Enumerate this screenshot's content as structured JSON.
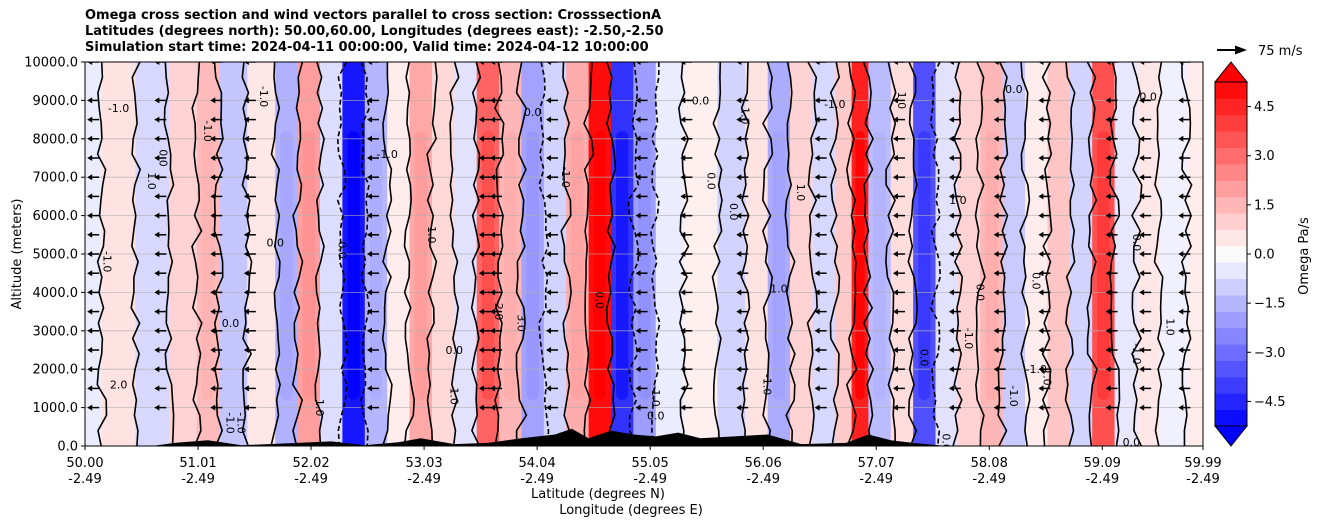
{
  "chart_data": {
    "type": "heatmap",
    "title_lines": [
      "Omega cross section and wind vectors parallel to cross section: CrosssectionA",
      "Latitudes (degrees north): 50.00,60.00, Longitudes (degrees east): -2.50,-2.50",
      "Simulation start time: 2024-04-11 00:00:00, Valid time: 2024-04-12 10:00:00"
    ],
    "ylabel": "Altitude (meters)",
    "xlabel_lines": [
      "Latitude (degrees N)",
      "Longitude (degrees E)"
    ],
    "ylim": [
      0,
      10000
    ],
    "y_ticks": [
      "0.0",
      "1000.0",
      "2000.0",
      "3000.0",
      "4000.0",
      "5000.0",
      "6000.0",
      "7000.0",
      "8000.0",
      "9000.0",
      "10000.0"
    ],
    "xlim": [
      50.0,
      59.99
    ],
    "x_tick_values": [
      50.0,
      51.01,
      52.02,
      53.03,
      54.04,
      55.05,
      56.06,
      57.07,
      58.08,
      59.09,
      59.99
    ],
    "x_ticks_lat": [
      "50.00",
      "51.01",
      "52.02",
      "53.03",
      "54.04",
      "55.05",
      "56.06",
      "57.07",
      "58.08",
      "59.09",
      "59.99"
    ],
    "x_ticks_lon": [
      "-2.49",
      "-2.49",
      "-2.49",
      "-2.49",
      "-2.49",
      "-2.49",
      "-2.49",
      "-2.49",
      "-2.49",
      "-2.49",
      "-2.49"
    ],
    "grid": true,
    "colorbar": {
      "label": "Omega Pa/s",
      "range": [
        -5.25,
        5.25
      ],
      "ticks": [
        "4.5",
        "3.0",
        "1.5",
        "0.0",
        "−1.5",
        "−3.0",
        "−4.5"
      ],
      "tick_values": [
        4.5,
        3.0,
        1.5,
        0.0,
        -1.5,
        -3.0,
        -4.5
      ],
      "extend": "both"
    },
    "vector_key": {
      "label": "75 m/s"
    },
    "omega_columns": [
      {
        "lat": 50.0,
        "v": -0.4
      },
      {
        "lat": 50.3,
        "v": 0.6
      },
      {
        "lat": 50.6,
        "v": -0.8
      },
      {
        "lat": 50.9,
        "v": 0.9
      },
      {
        "lat": 51.1,
        "v": 1.4
      },
      {
        "lat": 51.3,
        "v": -1.2
      },
      {
        "lat": 51.6,
        "v": 0.5
      },
      {
        "lat": 51.8,
        "v": -1.6
      },
      {
        "lat": 52.0,
        "v": 2.0
      },
      {
        "lat": 52.2,
        "v": -0.7
      },
      {
        "lat": 52.4,
        "v": -4.8
      },
      {
        "lat": 52.6,
        "v": -1.5
      },
      {
        "lat": 52.8,
        "v": 0.4
      },
      {
        "lat": 53.0,
        "v": 1.8
      },
      {
        "lat": 53.2,
        "v": 0.8
      },
      {
        "lat": 53.4,
        "v": -0.6
      },
      {
        "lat": 53.6,
        "v": 3.2
      },
      {
        "lat": 53.8,
        "v": 1.5
      },
      {
        "lat": 54.0,
        "v": -1.9
      },
      {
        "lat": 54.2,
        "v": -0.9
      },
      {
        "lat": 54.4,
        "v": 1.7
      },
      {
        "lat": 54.6,
        "v": 5.0
      },
      {
        "lat": 54.8,
        "v": -4.2
      },
      {
        "lat": 55.0,
        "v": -2.0
      },
      {
        "lat": 55.2,
        "v": -0.4
      },
      {
        "lat": 55.5,
        "v": 0.3
      },
      {
        "lat": 55.8,
        "v": -0.9
      },
      {
        "lat": 56.0,
        "v": 0.6
      },
      {
        "lat": 56.2,
        "v": -1.7
      },
      {
        "lat": 56.4,
        "v": 0.9
      },
      {
        "lat": 56.6,
        "v": -0.8
      },
      {
        "lat": 56.8,
        "v": 1.1
      },
      {
        "lat": 56.9,
        "v": 4.6
      },
      {
        "lat": 57.1,
        "v": -1.4
      },
      {
        "lat": 57.3,
        "v": 0.7
      },
      {
        "lat": 57.5,
        "v": -3.6
      },
      {
        "lat": 57.7,
        "v": -0.6
      },
      {
        "lat": 57.9,
        "v": 0.9
      },
      {
        "lat": 58.1,
        "v": 1.5
      },
      {
        "lat": 58.3,
        "v": -1.1
      },
      {
        "lat": 58.5,
        "v": 0.4
      },
      {
        "lat": 58.7,
        "v": 1.2
      },
      {
        "lat": 58.9,
        "v": -0.9
      },
      {
        "lat": 59.1,
        "v": 3.6
      },
      {
        "lat": 59.3,
        "v": -0.5
      },
      {
        "lat": 59.5,
        "v": 0.5
      },
      {
        "lat": 59.7,
        "v": -0.3
      },
      {
        "lat": 59.99,
        "v": 0.4
      }
    ],
    "contour_labels": [
      {
        "text": "-1.0",
        "lat": 50.3,
        "alt": 8800
      },
      {
        "text": "1.0",
        "lat": 50.6,
        "alt": 6900
      },
      {
        "text": "-1.0",
        "lat": 50.2,
        "alt": 4800
      },
      {
        "text": "2.0",
        "lat": 50.3,
        "alt": 1600
      },
      {
        "text": "0.0",
        "lat": 50.7,
        "alt": 7500
      },
      {
        "text": "-1.0",
        "lat": 51.1,
        "alt": 8200
      },
      {
        "text": "0.0",
        "lat": 51.3,
        "alt": 3200
      },
      {
        "text": "-1.0",
        "lat": 51.3,
        "alt": 600
      },
      {
        "text": "-1.0",
        "lat": 51.6,
        "alt": 9100
      },
      {
        "text": "0.0",
        "lat": 51.7,
        "alt": 5300
      },
      {
        "text": "1.0",
        "lat": 52.1,
        "alt": 1000
      },
      {
        "text": "0.0",
        "lat": 52.3,
        "alt": 5100
      },
      {
        "text": "-1.0",
        "lat": 52.7,
        "alt": 7600
      },
      {
        "text": "1.0",
        "lat": 53.1,
        "alt": 5500
      },
      {
        "text": "1.0",
        "lat": 53.3,
        "alt": 1300
      },
      {
        "text": "0.0",
        "lat": 53.3,
        "alt": 2500
      },
      {
        "text": "2.0",
        "lat": 53.7,
        "alt": 3500
      },
      {
        "text": "3.0",
        "lat": 53.9,
        "alt": 3200
      },
      {
        "text": "0.0",
        "lat": 54.0,
        "alt": 8700
      },
      {
        "text": "-1.0",
        "lat": 54.3,
        "alt": 7000
      },
      {
        "text": "0.0",
        "lat": 54.6,
        "alt": 3800
      },
      {
        "text": "0.0",
        "lat": 55.1,
        "alt": 800
      },
      {
        "text": "-1.0",
        "lat": 55.1,
        "alt": 1300
      },
      {
        "text": "0.0",
        "lat": 55.6,
        "alt": 6900
      },
      {
        "text": "0.0",
        "lat": 55.5,
        "alt": 9000
      },
      {
        "text": "1.0",
        "lat": 55.9,
        "alt": 8600
      },
      {
        "text": "0.0",
        "lat": 55.8,
        "alt": 6100
      },
      {
        "text": "1.0",
        "lat": 56.2,
        "alt": 4100
      },
      {
        "text": "1.0",
        "lat": 56.4,
        "alt": 6600
      },
      {
        "text": "-1.0",
        "lat": 56.1,
        "alt": 1600
      },
      {
        "text": "-1.0",
        "lat": 56.7,
        "alt": 8900
      },
      {
        "text": "1.0",
        "lat": 57.3,
        "alt": 9000
      },
      {
        "text": "0.0",
        "lat": 57.5,
        "alt": 2300
      },
      {
        "text": "1.0",
        "lat": 57.8,
        "alt": 6400
      },
      {
        "text": "-1.0",
        "lat": 57.9,
        "alt": 2800
      },
      {
        "text": "0.0",
        "lat": 58.0,
        "alt": 4000
      },
      {
        "text": "0.0",
        "lat": 58.3,
        "alt": 9300
      },
      {
        "text": "-1.0",
        "lat": 58.3,
        "alt": 1300
      },
      {
        "text": "0.0",
        "lat": 58.5,
        "alt": 4300
      },
      {
        "text": "-1.0",
        "lat": 58.5,
        "alt": 2000
      },
      {
        "text": "1.0",
        "lat": 58.6,
        "alt": 1800
      },
      {
        "text": "0.0",
        "lat": 59.4,
        "alt": 5300
      },
      {
        "text": "0.0",
        "lat": 59.5,
        "alt": 9100
      },
      {
        "text": "-1.0",
        "lat": 59.4,
        "alt": 2400
      },
      {
        "text": "1.0",
        "lat": 59.7,
        "alt": 3100
      },
      {
        "text": "0.0",
        "lat": 59.35,
        "alt": 100
      },
      {
        "text": "0.0",
        "lat": 57.7,
        "alt": 100
      },
      {
        "text": "-1.0",
        "lat": 51.4,
        "alt": 600
      }
    ],
    "wind_vectors": {
      "direction": "left",
      "columns": [
        50.1,
        50.7,
        51.2,
        51.5,
        52.6,
        53.6,
        53.7,
        54.2,
        55.0,
        55.4,
        55.9,
        56.6,
        57.3,
        57.8,
        58.2,
        58.6,
        59.2,
        59.5,
        59.85
      ],
      "levels": [
        10000,
        9000,
        8500,
        8000,
        7500,
        7000,
        6500,
        6000,
        5500,
        5000,
        4500,
        4000,
        3500,
        3000,
        2500,
        2000,
        1500,
        1000
      ]
    },
    "terrain": [
      {
        "lat": 50.0,
        "alt": 0
      },
      {
        "lat": 50.6,
        "alt": 0
      },
      {
        "lat": 50.8,
        "alt": 80
      },
      {
        "lat": 51.1,
        "alt": 150
      },
      {
        "lat": 51.4,
        "alt": 20
      },
      {
        "lat": 51.9,
        "alt": 80
      },
      {
        "lat": 52.2,
        "alt": 120
      },
      {
        "lat": 52.5,
        "alt": 20
      },
      {
        "lat": 52.8,
        "alt": 100
      },
      {
        "lat": 53.0,
        "alt": 200
      },
      {
        "lat": 53.3,
        "alt": 50
      },
      {
        "lat": 53.6,
        "alt": 80
      },
      {
        "lat": 53.9,
        "alt": 200
      },
      {
        "lat": 54.2,
        "alt": 300
      },
      {
        "lat": 54.35,
        "alt": 450
      },
      {
        "lat": 54.5,
        "alt": 200
      },
      {
        "lat": 54.7,
        "alt": 400
      },
      {
        "lat": 54.9,
        "alt": 300
      },
      {
        "lat": 55.1,
        "alt": 250
      },
      {
        "lat": 55.3,
        "alt": 350
      },
      {
        "lat": 55.5,
        "alt": 200
      },
      {
        "lat": 55.8,
        "alt": 250
      },
      {
        "lat": 56.1,
        "alt": 300
      },
      {
        "lat": 56.4,
        "alt": 50
      },
      {
        "lat": 56.8,
        "alt": 80
      },
      {
        "lat": 57.0,
        "alt": 300
      },
      {
        "lat": 57.2,
        "alt": 150
      },
      {
        "lat": 57.4,
        "alt": 80
      },
      {
        "lat": 57.7,
        "alt": 0
      },
      {
        "lat": 59.99,
        "alt": 0
      }
    ]
  }
}
